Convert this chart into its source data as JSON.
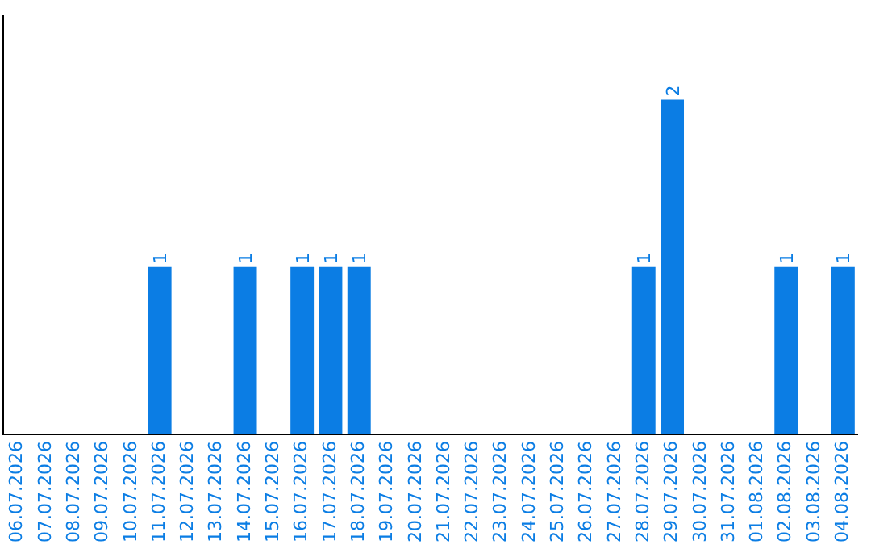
{
  "chart_data": {
    "type": "bar",
    "categories": [
      "06.07.2026",
      "07.07.2026",
      "08.07.2026",
      "09.07.2026",
      "10.07.2026",
      "11.07.2026",
      "12.07.2026",
      "13.07.2026",
      "14.07.2026",
      "15.07.2026",
      "16.07.2026",
      "17.07.2026",
      "18.07.2026",
      "19.07.2026",
      "20.07.2026",
      "21.07.2026",
      "22.07.2026",
      "23.07.2026",
      "24.07.2026",
      "25.07.2026",
      "26.07.2026",
      "27.07.2026",
      "28.07.2026",
      "29.07.2026",
      "30.07.2026",
      "31.07.2026",
      "01.08.2026",
      "02.08.2026",
      "03.08.2026",
      "04.08.2026"
    ],
    "values": [
      0,
      0,
      0,
      0,
      0,
      1,
      0,
      0,
      1,
      0,
      1,
      1,
      1,
      0,
      0,
      0,
      0,
      0,
      0,
      0,
      0,
      0,
      1,
      2,
      0,
      0,
      0,
      1,
      0,
      1
    ],
    "value_labels": [
      null,
      null,
      null,
      null,
      null,
      "1",
      null,
      null,
      "1",
      null,
      "1",
      "1",
      "1",
      null,
      null,
      null,
      null,
      null,
      null,
      null,
      null,
      null,
      "1",
      "2",
      null,
      null,
      null,
      "1",
      null,
      "1"
    ],
    "color": "#0b7de4",
    "grid": false,
    "legend": false,
    "tick_labels": "x"
  }
}
